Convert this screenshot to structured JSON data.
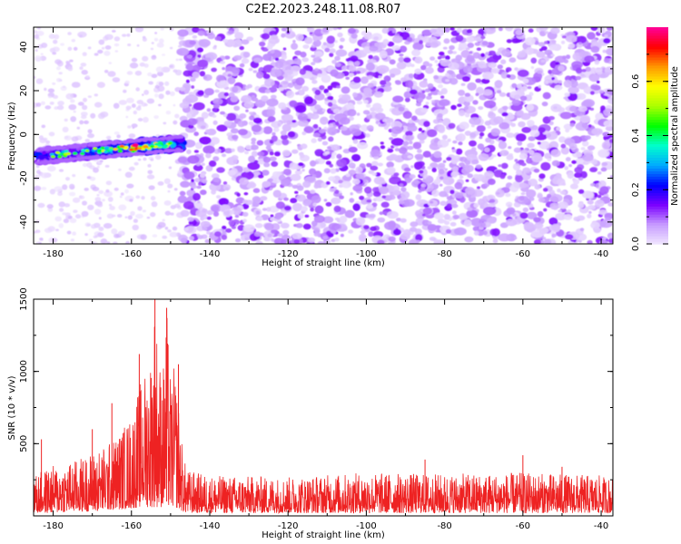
{
  "title": "C2E2.2023.248.11.08.R07",
  "chart_data": [
    {
      "type": "heatmap",
      "xlabel": "Height of straight line (km)",
      "ylabel": "Frequency (Hz)",
      "xlim": [
        -185,
        -37
      ],
      "ylim": [
        -50,
        49
      ],
      "x_ticks": [
        -180,
        -160,
        -140,
        -120,
        -100,
        -80,
        -60,
        -40
      ],
      "x_tick_labels": [
        "-180",
        "-160",
        "-140",
        "-120",
        "-100",
        "-80",
        "-60",
        "-40"
      ],
      "y_ticks": [
        -40,
        -20,
        0,
        20,
        40
      ],
      "y_tick_labels": [
        "-40",
        "-20",
        "0",
        "20",
        "40"
      ],
      "colorbar": {
        "label": "Normalized spectral amplitude",
        "range": [
          0,
          0.8
        ],
        "ticks": [
          0,
          0.2,
          0.4,
          0.6
        ],
        "tick_labels": [
          "0.0",
          "0.2",
          "0.4",
          "0.6"
        ],
        "colors": [
          "#f0e6ff",
          "#c79cff",
          "#7b00ff",
          "#0000ff",
          "#00aaff",
          "#00ffcc",
          "#00ff00",
          "#aaff00",
          "#ffff00",
          "#ff9900",
          "#ff0000",
          "#ff0099"
        ]
      },
      "regions": [
        {
          "x_range": [
            -185,
            -147
          ],
          "y_range": [
            -50,
            49
          ],
          "density": "sparse",
          "max_amplitude": 0.1
        },
        {
          "x_range": [
            -147,
            -37
          ],
          "y_range": [
            -50,
            49
          ],
          "density": "dense",
          "max_amplitude": 0.15
        }
      ],
      "signal_band": {
        "x_range": [
          -184,
          -147
        ],
        "frequency_center": [
          -10,
          -9,
          -8,
          -7,
          -6,
          -5,
          -4
        ],
        "frequency_center_x": [
          -184,
          -178,
          -172,
          -166,
          -160,
          -154,
          -147
        ],
        "frequency_halfwidth": 3,
        "peak_x": -159,
        "peak_frequency": -5,
        "peak_amplitude": 0.78
      }
    },
    {
      "type": "line",
      "xlabel": "Height of straight line (km)",
      "ylabel": "SNR (10 * v/v)",
      "xlim": [
        -185,
        -37
      ],
      "ylim": [
        0,
        1500
      ],
      "x_ticks": [
        -180,
        -160,
        -140,
        -120,
        -100,
        -80,
        -60,
        -40
      ],
      "x_tick_labels": [
        "-180",
        "-160",
        "-140",
        "-120",
        "-100",
        "-80",
        "-60",
        "-40"
      ],
      "y_ticks": [
        500,
        1000,
        1500
      ],
      "y_tick_labels": [
        "500",
        "1000",
        "1500"
      ],
      "color": "#ee2222",
      "series": [
        {
          "x": [
            -185,
            -180,
            -175,
            -170,
            -165,
            -160,
            -158,
            -156,
            -155,
            -154,
            -153,
            -152,
            -151,
            -150,
            -149,
            -148,
            -147,
            -146,
            -140,
            -120,
            -100,
            -80,
            -60,
            -40,
            -37
          ],
          "upper": [
            280,
            350,
            380,
            440,
            520,
            700,
            900,
            1050,
            1150,
            1500,
            1120,
            1000,
            1450,
            950,
            1040,
            800,
            480,
            320,
            280,
            270,
            300,
            290,
            300,
            280,
            260
          ],
          "lower": [
            20,
            20,
            30,
            30,
            40,
            50,
            60,
            60,
            60,
            60,
            60,
            60,
            60,
            60,
            60,
            50,
            30,
            20,
            20,
            20,
            20,
            20,
            20,
            20,
            20
          ],
          "spikes": [
            {
              "x": -183,
              "y": 530
            },
            {
              "x": -170,
              "y": 600
            },
            {
              "x": -165,
              "y": 780
            },
            {
              "x": -158,
              "y": 1120
            },
            {
              "x": -154,
              "y": 1500
            },
            {
              "x": -151,
              "y": 1440
            },
            {
              "x": -148,
              "y": 1050
            },
            {
              "x": -85,
              "y": 390
            },
            {
              "x": -60,
              "y": 420
            },
            {
              "x": -50,
              "y": 340
            }
          ]
        }
      ]
    }
  ]
}
